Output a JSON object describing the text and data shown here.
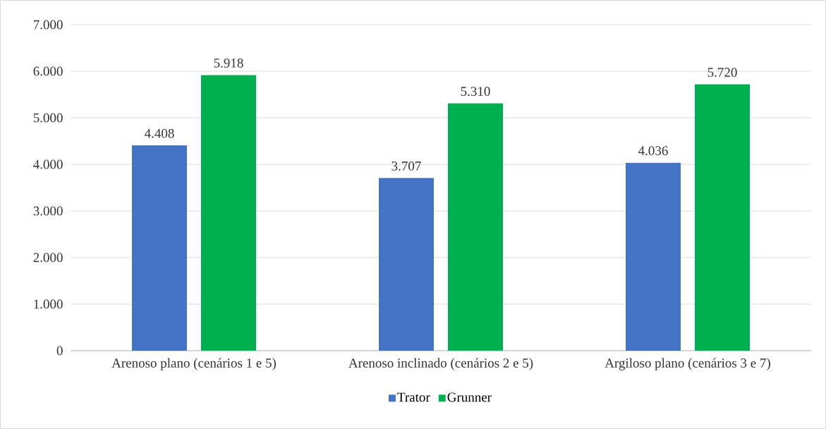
{
  "chart_data": {
    "type": "bar",
    "categories": [
      "Arenoso plano (cenários 1 e 5)",
      "Arenoso inclinado (cenários 2 e 5)",
      "Argiloso plano (cenários 3 e 7)"
    ],
    "series": [
      {
        "name": "Trator",
        "color": "#4472c4",
        "values": [
          4408,
          3707,
          4036
        ],
        "value_labels": [
          "4.408",
          "3.707",
          "4.036"
        ]
      },
      {
        "name": "Grunner",
        "color": "#00b050",
        "values": [
          5918,
          5310,
          5720
        ],
        "value_labels": [
          "5.918",
          "5.310",
          "5.720"
        ]
      }
    ],
    "ylim": [
      0,
      7000
    ],
    "yticks": [
      0,
      {
        "value": 1000,
        "label": "1.000"
      },
      {
        "value": 2000,
        "label": "2.000"
      },
      {
        "value": 3000,
        "label": "3.000"
      },
      {
        "value": 4000,
        "label": "4.000"
      },
      {
        "value": 5000,
        "label": "5.000"
      },
      {
        "value": 6000,
        "label": "6.000"
      },
      {
        "value": 7000,
        "label": "7.000"
      }
    ],
    "grid": "y",
    "legend": "bottom"
  }
}
